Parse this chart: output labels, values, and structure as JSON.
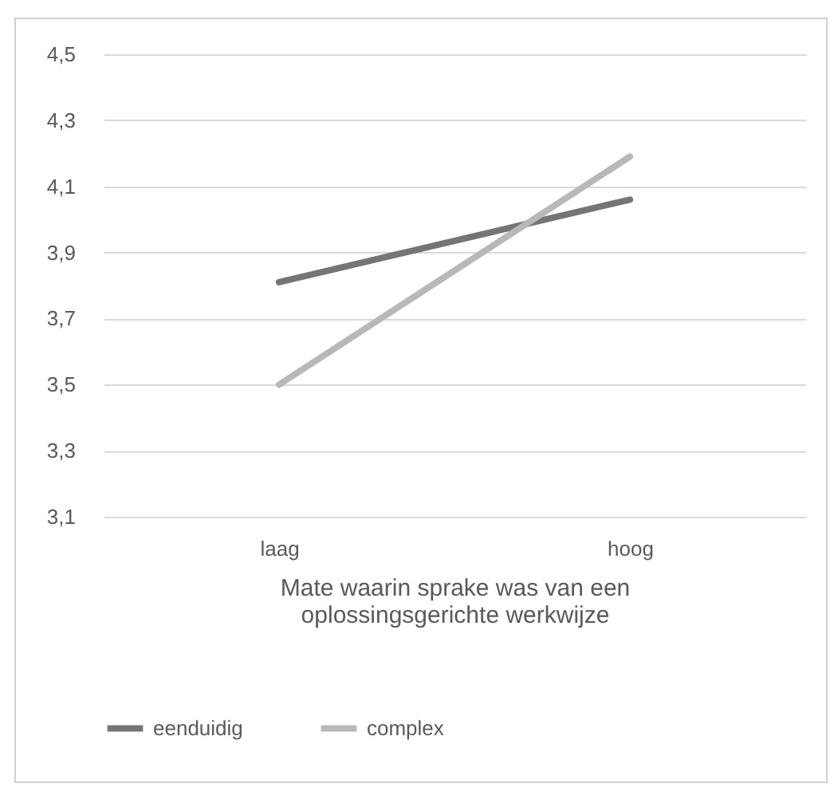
{
  "chart_data": {
    "type": "line",
    "xlabel": "Mate waarin sprake was van een oplossingsgerichte werkwijze",
    "categories": [
      "laag",
      "hoog"
    ],
    "series": [
      {
        "name": "eenduidig",
        "color": "#757575",
        "values": [
          3.81,
          4.06
        ]
      },
      {
        "name": "complex",
        "color": "#b8b8b8",
        "values": [
          3.5,
          4.19
        ]
      }
    ],
    "ylim": [
      3.1,
      4.5
    ],
    "yticks": [
      {
        "value": 3.1,
        "label": "3,1"
      },
      {
        "value": 3.3,
        "label": "3,3"
      },
      {
        "value": 3.5,
        "label": "3,5"
      },
      {
        "value": 3.7,
        "label": "3,7"
      },
      {
        "value": 3.9,
        "label": "3,9"
      },
      {
        "value": 4.1,
        "label": "4,1"
      },
      {
        "value": 4.3,
        "label": "4,3"
      },
      {
        "value": 4.5,
        "label": "4,5"
      }
    ],
    "grid": "y",
    "legend": "bottom",
    "marker": "none",
    "line_style": "solid"
  }
}
